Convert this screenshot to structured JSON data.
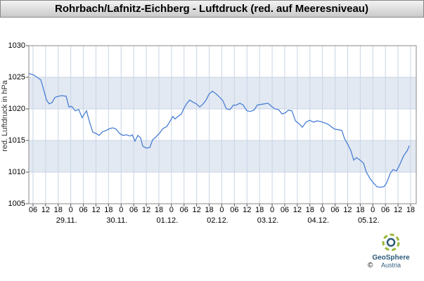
{
  "chart_data": {
    "type": "line",
    "title": "Rohrbach/Lafnitz-Eichberg - Luftdruck (red. auf Meeresniveau)",
    "y_label": "red. Luftdruck in hPa",
    "xlim": [
      4,
      188.7
    ],
    "ylim": [
      1005,
      1030
    ],
    "yticks": [
      1005,
      1010,
      1015,
      1020,
      1025,
      1030
    ],
    "xticks": [
      {
        "value": 6,
        "label": "06"
      },
      {
        "value": 12,
        "label": "12"
      },
      {
        "value": 18,
        "label": "18"
      },
      {
        "value": 24,
        "label": "0"
      },
      {
        "value": 30,
        "label": "06"
      },
      {
        "value": 36,
        "label": "12"
      },
      {
        "value": 42,
        "label": "18"
      },
      {
        "value": 48,
        "label": "0"
      },
      {
        "value": 54,
        "label": "06"
      },
      {
        "value": 60,
        "label": "12"
      },
      {
        "value": 66,
        "label": "18"
      },
      {
        "value": 72,
        "label": "0"
      },
      {
        "value": 78,
        "label": "06"
      },
      {
        "value": 84,
        "label": "12"
      },
      {
        "value": 90,
        "label": "18"
      },
      {
        "value": 96,
        "label": "0"
      },
      {
        "value": 102,
        "label": "06"
      },
      {
        "value": 108,
        "label": "12"
      },
      {
        "value": 114,
        "label": "18"
      },
      {
        "value": 120,
        "label": "0"
      },
      {
        "value": 126,
        "label": "06"
      },
      {
        "value": 132,
        "label": "12"
      },
      {
        "value": 138,
        "label": "18"
      },
      {
        "value": 144,
        "label": "0"
      },
      {
        "value": 150,
        "label": "06"
      },
      {
        "value": 156,
        "label": "12"
      },
      {
        "value": 162,
        "label": "18"
      },
      {
        "value": 168,
        "label": "0"
      },
      {
        "value": 174,
        "label": "06"
      },
      {
        "value": 180,
        "label": "12"
      },
      {
        "value": 186,
        "label": "18"
      }
    ],
    "day_ticks": [
      {
        "value": 24,
        "label": "29.11."
      },
      {
        "value": 48,
        "label": "30.11."
      },
      {
        "value": 72,
        "label": "01.12."
      },
      {
        "value": 96,
        "label": "02.12."
      },
      {
        "value": 120,
        "label": "03.12."
      },
      {
        "value": 144,
        "label": "04.12."
      },
      {
        "value": 168,
        "label": "05.12."
      }
    ],
    "grid": true,
    "series": [
      {
        "color": "#4a7fd4",
        "x": [
          4.0,
          6.0,
          8.0,
          9.7,
          11.0,
          12.4,
          13.7,
          15.1,
          16.4,
          18.1,
          19.7,
          21.8,
          23.1,
          24.4,
          26.1,
          27.8,
          29.4,
          30.5,
          31.5,
          32.8,
          34.5,
          36.2,
          37.5,
          39.2,
          40.9,
          42.6,
          44.2,
          45.6,
          47.3,
          48.9,
          50.6,
          52.3,
          53.3,
          54.6,
          56.0,
          57.3,
          58.3,
          60.0,
          61.7,
          63.0,
          64.7,
          66.4,
          68.0,
          69.7,
          71.4,
          72.7,
          73.7,
          75.1,
          76.7,
          78.1,
          79.4,
          80.7,
          82.1,
          83.8,
          85.5,
          87.1,
          88.5,
          89.8,
          91.5,
          93.2,
          94.8,
          96.5,
          98.2,
          99.9,
          101.5,
          102.9,
          104.6,
          106.2,
          107.9,
          109.6,
          111.3,
          112.9,
          114.6,
          116.3,
          118.0,
          119.7,
          121.3,
          123.0,
          124.7,
          126.4,
          127.7,
          129.4,
          131.1,
          132.7,
          134.4,
          136.1,
          137.8,
          139.8,
          141.4,
          143.1,
          144.8,
          146.5,
          148.1,
          149.8,
          151.5,
          153.2,
          154.5,
          156.2,
          157.5,
          158.9,
          160.2,
          161.9,
          163.6,
          164.9,
          166.6,
          168.3,
          169.9,
          171.6,
          173.3,
          174.6,
          176.3,
          177.6,
          179.3,
          181.0,
          182.7,
          184.4,
          185.4
        ],
        "values": [
          1025.6,
          1025.4,
          1025,
          1024.6,
          1023.1,
          1021.4,
          1020.8,
          1021,
          1021.8,
          1022,
          1022.1,
          1022,
          1020.3,
          1020.4,
          1019.7,
          1019.9,
          1018.6,
          1019.2,
          1019.7,
          1018.1,
          1016.3,
          1016.1,
          1015.8,
          1016.4,
          1016.6,
          1016.9,
          1017,
          1016.8,
          1016.1,
          1015.8,
          1015.9,
          1015.7,
          1015.9,
          1014.9,
          1015.8,
          1015.4,
          1014.1,
          1013.8,
          1013.9,
          1015.1,
          1015.6,
          1016.2,
          1016.9,
          1017.2,
          1018.1,
          1018.8,
          1018.4,
          1018.8,
          1019.2,
          1020.2,
          1020.9,
          1021.4,
          1021.1,
          1020.8,
          1020.3,
          1020.8,
          1021.4,
          1022.3,
          1022.8,
          1022.4,
          1021.9,
          1021.3,
          1020,
          1019.9,
          1020.6,
          1020.6,
          1020.9,
          1020.6,
          1019.7,
          1019.6,
          1019.8,
          1020.6,
          1020.7,
          1020.8,
          1020.9,
          1020.4,
          1020,
          1019.9,
          1019.2,
          1019.4,
          1019.8,
          1019.7,
          1018.1,
          1017.7,
          1017.1,
          1017.9,
          1018.2,
          1017.9,
          1018.1,
          1018,
          1017.8,
          1017.6,
          1017.2,
          1016.8,
          1016.7,
          1016.6,
          1015.3,
          1014.3,
          1013.4,
          1011.9,
          1012.3,
          1011.9,
          1011.4,
          1010,
          1009,
          1008.3,
          1007.7,
          1007.6,
          1007.7,
          1008.3,
          1009.8,
          1010.4,
          1010.2,
          1011.3,
          1012.6,
          1013.4,
          1014.2
        ]
      }
    ]
  },
  "logo": {
    "copyright": "©",
    "name": "GeoSphere",
    "country": "Austria"
  }
}
